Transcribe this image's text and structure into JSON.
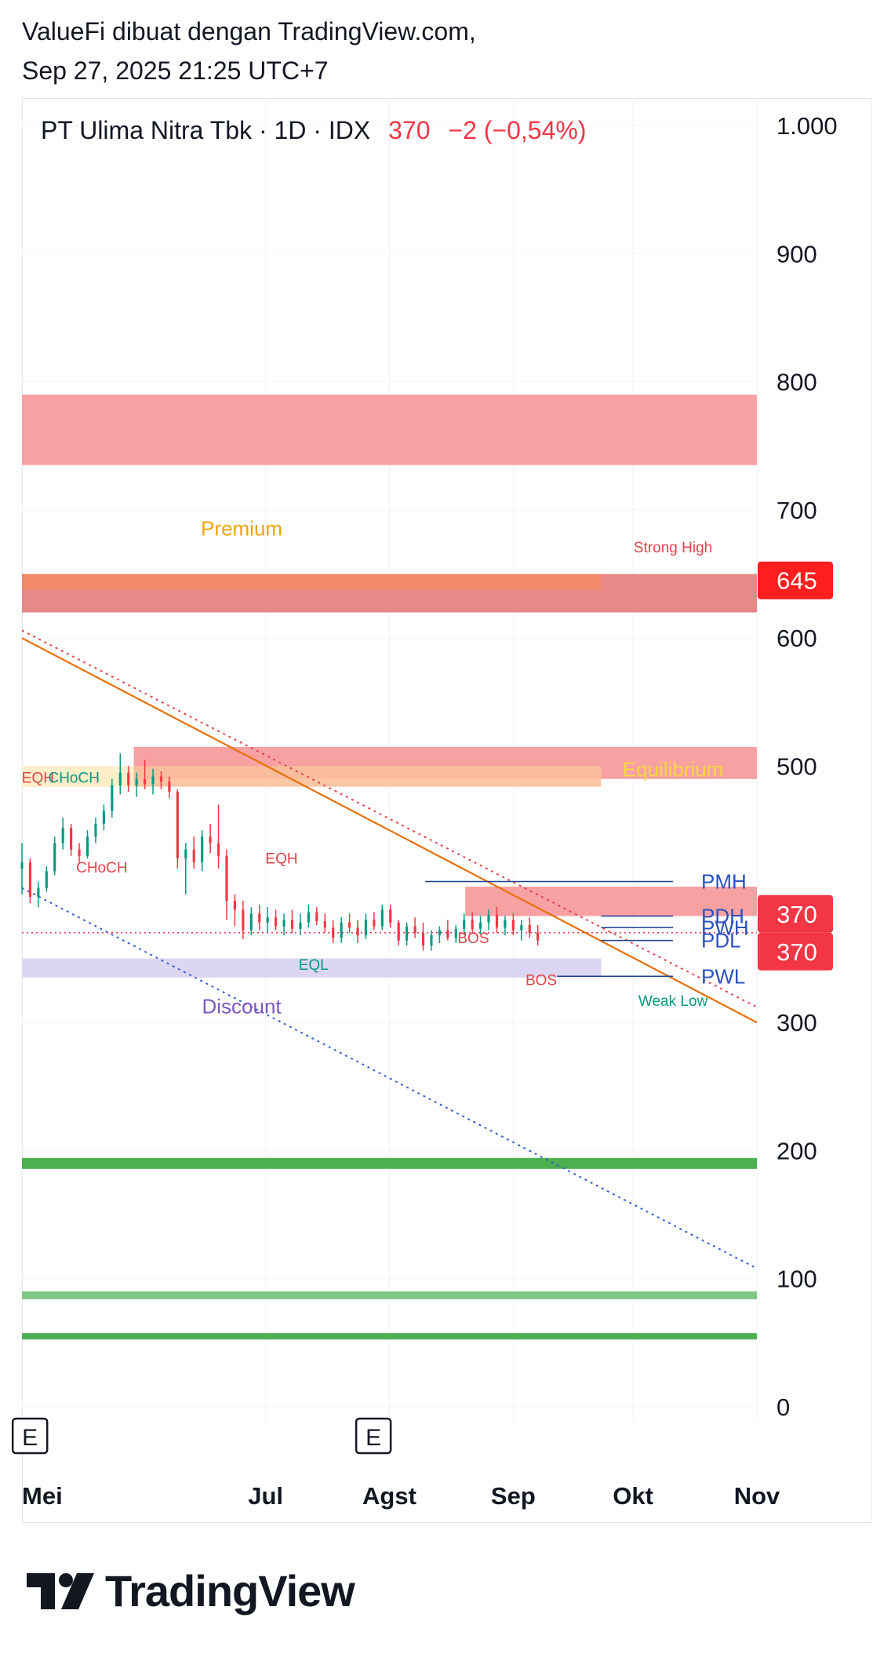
{
  "header": {
    "line1": "ValueFi dibuat dengan TradingView.com,",
    "line2": "Sep 27, 2025 21:25 UTC+7"
  },
  "legend": {
    "symbol": "PT Ulima Nitra Tbk · 1D · IDX",
    "price": "370",
    "change": "−2 (−0,54%)"
  },
  "colors": {
    "down": "#f23645",
    "up": "#089981",
    "zone_red": "#f7a1a3",
    "zone_purple": "#ddd6f3",
    "support_green": "#4caf50",
    "trend_orange": "#e8700a",
    "level_blue": "#1c3f95",
    "discount": "#7e57c2",
    "premium": "#f0a30a"
  },
  "chart_data": {
    "type": "candlestick",
    "ylim": [
      0,
      1000
    ],
    "y_ticks": [
      {
        "value": 1000,
        "label": "1.000"
      },
      {
        "value": 900,
        "label": "900"
      },
      {
        "value": 800,
        "label": "800"
      },
      {
        "value": 700,
        "label": "700"
      },
      {
        "value": 600,
        "label": "600"
      },
      {
        "value": 500,
        "label": "500"
      },
      {
        "value": 300,
        "label": "300"
      },
      {
        "value": 200,
        "label": "200"
      },
      {
        "value": 100,
        "label": "100"
      },
      {
        "value": 0,
        "label": "0"
      }
    ],
    "x_ticks": [
      {
        "day": 0,
        "label": "Mei"
      },
      {
        "day": 61,
        "label": "Jul"
      },
      {
        "day": 92,
        "label": "Agst"
      },
      {
        "day": 123,
        "label": "Sep"
      },
      {
        "day": 153,
        "label": "Okt"
      },
      {
        "day": 184,
        "label": "Nov"
      }
    ],
    "x_range_days": [
      0,
      184
    ],
    "price_labels": [
      {
        "value": 645,
        "label": "645",
        "color": "#ff1e1e"
      },
      {
        "value": 370,
        "label": "370",
        "color": "#f23645"
      },
      {
        "value": 370,
        "label": "370",
        "color": "#f23645"
      }
    ],
    "zones": [
      {
        "y0": 735,
        "y1": 790,
        "x0": 0,
        "x1": 184,
        "color": "#f7a1a3",
        "opacity": 1
      },
      {
        "y0": 620,
        "y1": 650,
        "x0": 0,
        "x1": 184,
        "color": "#e57373",
        "opacity": 0.85
      },
      {
        "y0": 638,
        "y1": 650,
        "x0": 0,
        "x1": 145,
        "color": "#f28b66",
        "opacity": 0.9
      },
      {
        "y0": 490,
        "y1": 515,
        "x0": 28,
        "x1": 184,
        "color": "#f7a1a3",
        "opacity": 1
      },
      {
        "y0": 484,
        "y1": 500,
        "x0": 0,
        "x1": 145,
        "color": "#f9c09a",
        "opacity": 0.9
      },
      {
        "y0": 484,
        "y1": 500,
        "x0": 0,
        "x1": 28,
        "color": "#fff3cc",
        "opacity": 0.9
      },
      {
        "y0": 383,
        "y1": 406,
        "x0": 111,
        "x1": 184,
        "color": "#f7a1a3",
        "opacity": 1
      },
      {
        "y0": 335,
        "y1": 350,
        "x0": 0,
        "x1": 145,
        "color": "#ddd6f3",
        "opacity": 1
      }
    ],
    "support_lines": [
      {
        "value": 190,
        "width": 14,
        "color": "#4caf50"
      },
      {
        "value": 87,
        "width": 10,
        "color": "#81c784"
      },
      {
        "value": 55,
        "width": 8,
        "color": "#4caf50"
      }
    ],
    "trend_lines": [
      {
        "from": [
          0,
          600
        ],
        "to": [
          184,
          300
        ],
        "color": "#e8700a",
        "dash": false
      },
      {
        "from": [
          0,
          606
        ],
        "to": [
          184,
          312
        ],
        "color": "#e0454a",
        "dash": true
      },
      {
        "from": [
          0,
          405
        ],
        "to": [
          184,
          108
        ],
        "color": "#3a5fcd",
        "dash": true
      }
    ],
    "levels": [
      {
        "label": "PMH",
        "value": 410,
        "x0": 101,
        "x1": 163
      },
      {
        "label": "PDH",
        "value": 383,
        "x0": 145,
        "x1": 163
      },
      {
        "label": "PWH",
        "value": 374,
        "x0": 145,
        "x1": 163
      },
      {
        "label": "PDL",
        "value": 364,
        "x0": 145,
        "x1": 163
      },
      {
        "label": "PWL",
        "value": 336,
        "x0": 134,
        "x1": 163
      }
    ],
    "last_price_line": 370,
    "annotations": [
      {
        "text": "Premium",
        "day": 55,
        "value": 680,
        "color": "#f0a30a"
      },
      {
        "text": "Strong High",
        "day": 163,
        "value": 667,
        "color": "#e0454a"
      },
      {
        "text": "Equilibrium",
        "day": 163,
        "value": 492,
        "color": "#f5d742"
      },
      {
        "text": "EQH",
        "day": 4,
        "value": 487,
        "color": "#e0454a"
      },
      {
        "text": "CHoCH",
        "day": 13,
        "value": 487,
        "color": "#089981"
      },
      {
        "text": "CHoCH",
        "day": 20,
        "value": 417,
        "color": "#e0454a"
      },
      {
        "text": "EQH",
        "day": 65,
        "value": 424,
        "color": "#e0454a"
      },
      {
        "text": "EQL",
        "day": 73,
        "value": 341,
        "color": "#089981"
      },
      {
        "text": "BOS",
        "day": 113,
        "value": 362,
        "color": "#e0454a"
      },
      {
        "text": "BOS",
        "day": 130,
        "value": 329,
        "color": "#e0454a"
      },
      {
        "text": "Discount",
        "day": 55,
        "value": 307,
        "color": "#7e57c2"
      },
      {
        "text": "Weak Low",
        "day": 163,
        "value": 313,
        "color": "#089981"
      }
    ],
    "earnings_markers": [
      {
        "day": 2,
        "label": "E"
      },
      {
        "day": 88,
        "label": "E"
      }
    ],
    "candles": [
      [
        0,
        420,
        440,
        400,
        425
      ],
      [
        1,
        425,
        428,
        393,
        398
      ],
      [
        2,
        398,
        410,
        390,
        405
      ],
      [
        3,
        405,
        422,
        402,
        418
      ],
      [
        4,
        418,
        445,
        415,
        440
      ],
      [
        5,
        440,
        460,
        435,
        452
      ],
      [
        6,
        452,
        455,
        430,
        435
      ],
      [
        7,
        435,
        440,
        425,
        430
      ],
      [
        8,
        430,
        450,
        428,
        445
      ],
      [
        9,
        445,
        460,
        440,
        455
      ],
      [
        10,
        455,
        470,
        450,
        465
      ],
      [
        11,
        465,
        490,
        460,
        485
      ],
      [
        12,
        485,
        510,
        478,
        495
      ],
      [
        13,
        495,
        500,
        480,
        485
      ],
      [
        14,
        485,
        495,
        476,
        490
      ],
      [
        15,
        490,
        505,
        482,
        486
      ],
      [
        16,
        486,
        498,
        478,
        492
      ],
      [
        17,
        492,
        496,
        482,
        488
      ],
      [
        18,
        488,
        492,
        475,
        480
      ],
      [
        19,
        480,
        482,
        420,
        428
      ],
      [
        20,
        428,
        440,
        400,
        435
      ],
      [
        21,
        435,
        445,
        420,
        425
      ],
      [
        22,
        425,
        450,
        418,
        445
      ],
      [
        23,
        445,
        455,
        432,
        440
      ],
      [
        24,
        440,
        470,
        420,
        430
      ],
      [
        25,
        430,
        435,
        380,
        395
      ],
      [
        26,
        395,
        400,
        375,
        388
      ],
      [
        27,
        388,
        395,
        365,
        372
      ],
      [
        28,
        372,
        390,
        368,
        385
      ],
      [
        29,
        385,
        392,
        372,
        378
      ],
      [
        30,
        378,
        390,
        370,
        382
      ],
      [
        31,
        382,
        388,
        372,
        375
      ],
      [
        32,
        375,
        385,
        368,
        380
      ],
      [
        33,
        380,
        388,
        370,
        373
      ],
      [
        34,
        373,
        385,
        368,
        378
      ],
      [
        35,
        378,
        392,
        374,
        386
      ],
      [
        36,
        386,
        390,
        376,
        379
      ],
      [
        37,
        379,
        385,
        370,
        374
      ],
      [
        38,
        374,
        380,
        362,
        366
      ],
      [
        39,
        366,
        382,
        362,
        378
      ],
      [
        40,
        378,
        385,
        370,
        374
      ],
      [
        41,
        374,
        380,
        362,
        368
      ],
      [
        42,
        368,
        385,
        365,
        380
      ],
      [
        43,
        380,
        386,
        372,
        375
      ],
      [
        44,
        375,
        392,
        372,
        388
      ],
      [
        45,
        388,
        392,
        374,
        378
      ],
      [
        46,
        378,
        380,
        360,
        364
      ],
      [
        47,
        364,
        378,
        360,
        375
      ],
      [
        48,
        375,
        382,
        366,
        370
      ],
      [
        49,
        370,
        378,
        356,
        360
      ],
      [
        50,
        360,
        372,
        356,
        368
      ],
      [
        51,
        368,
        375,
        362,
        372
      ],
      [
        52,
        372,
        380,
        364,
        366
      ],
      [
        53,
        366,
        376,
        362,
        373
      ],
      [
        54,
        373,
        385,
        368,
        380
      ],
      [
        55,
        380,
        386,
        370,
        373
      ],
      [
        56,
        373,
        383,
        369,
        378
      ],
      [
        57,
        378,
        388,
        372,
        384
      ],
      [
        58,
        384,
        390,
        370,
        374
      ],
      [
        59,
        374,
        383,
        368,
        380
      ],
      [
        60,
        380,
        385,
        368,
        372
      ],
      [
        61,
        372,
        380,
        364,
        376
      ],
      [
        62,
        376,
        382,
        366,
        370
      ],
      [
        63,
        370,
        376,
        360,
        364
      ]
    ],
    "candles_note": "each candle = [day, open, high, low, close]"
  }
}
